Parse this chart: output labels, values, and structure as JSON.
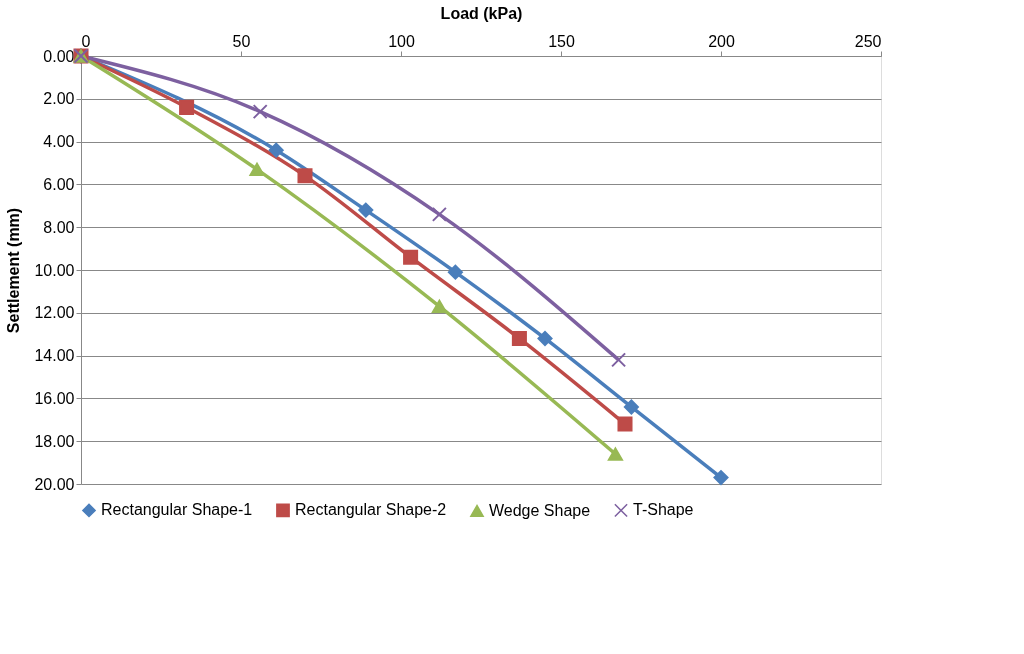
{
  "chart_data": {
    "type": "line",
    "xlabel": "Load (kPa)",
    "ylabel": "Settlement (mm)",
    "xlim": [
      0,
      250
    ],
    "xticks": [
      0,
      50,
      100,
      150,
      200,
      250
    ],
    "ylim": [
      20,
      0
    ],
    "yticks": [
      {
        "value": 0,
        "label": "0.00"
      },
      {
        "value": 2,
        "label": "2.00"
      },
      {
        "value": 4,
        "label": "4.00"
      },
      {
        "value": 6,
        "label": "6.00"
      },
      {
        "value": 8,
        "label": "8.00"
      },
      {
        "value": 10,
        "label": "10.00"
      },
      {
        "value": 12,
        "label": "12.00"
      },
      {
        "value": 14,
        "label": "14.00"
      },
      {
        "value": 16,
        "label": "16.00"
      },
      {
        "value": 18,
        "label": "18.00"
      },
      {
        "value": 20,
        "label": "20.00"
      }
    ],
    "grid": "y",
    "legend": "bottom",
    "series": [
      {
        "name": "Rectangular Shape-1",
        "color": "#4a7ebb",
        "marker": "diamond",
        "x": [
          0,
          61,
          89,
          117,
          145,
          172,
          200
        ],
        "values": [
          0,
          4.4,
          7.2,
          10.1,
          13.2,
          16.4,
          19.7
        ]
      },
      {
        "name": "Rectangular Shape-2",
        "color": "#be4b48",
        "marker": "square",
        "x": [
          0,
          33,
          70,
          103,
          137,
          170
        ],
        "values": [
          0,
          2.4,
          5.6,
          9.4,
          13.2,
          17.2
        ]
      },
      {
        "name": "Wedge Shape",
        "color": "#98b954",
        "marker": "triangle",
        "x": [
          0,
          55,
          112,
          167
        ],
        "values": [
          0,
          5.3,
          11.7,
          18.6
        ]
      },
      {
        "name": "T-Shape",
        "color": "#7d60a0",
        "marker": "cross",
        "x": [
          0,
          56,
          112,
          168
        ],
        "values": [
          0,
          2.6,
          7.4,
          14.2
        ]
      }
    ]
  }
}
